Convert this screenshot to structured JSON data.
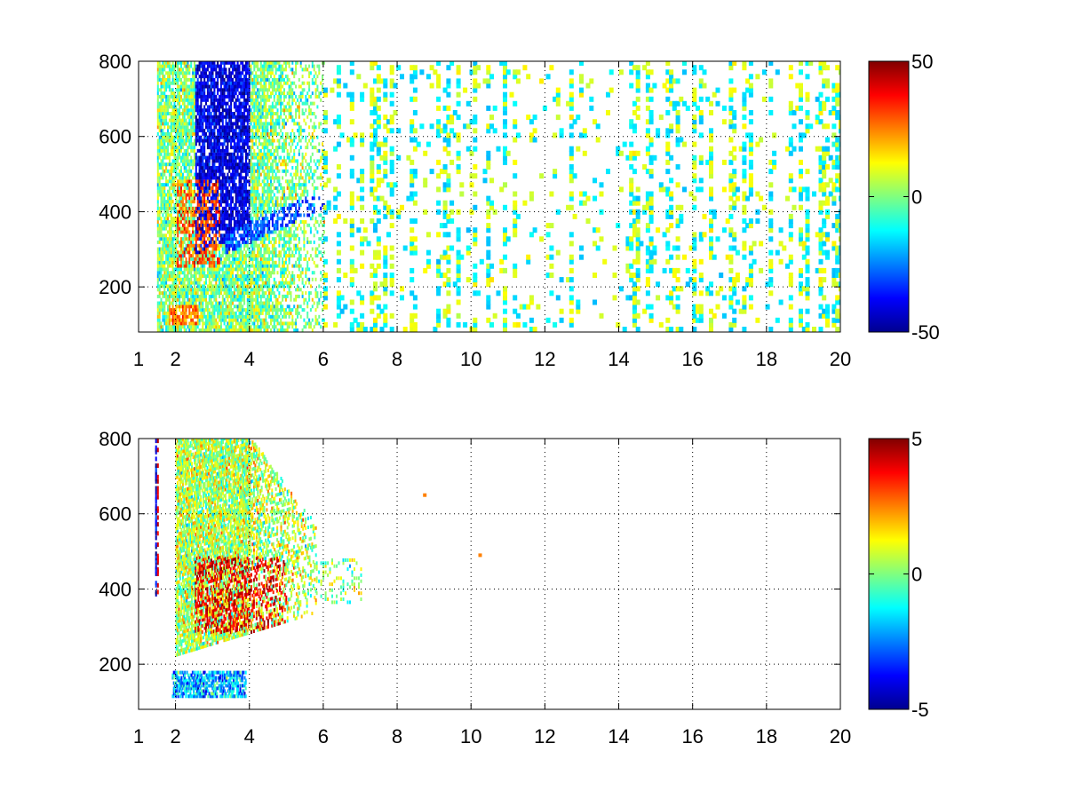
{
  "chart_data": [
    {
      "type": "heatmap",
      "title": "",
      "xlabel": "",
      "ylabel": "",
      "xlim": [
        1,
        20
      ],
      "ylim": [
        80,
        800
      ],
      "x_ticks": [
        1,
        2,
        4,
        6,
        8,
        10,
        12,
        14,
        16,
        18,
        20
      ],
      "y_ticks": [
        200,
        400,
        600,
        800
      ],
      "grid": true,
      "colormap": "jet",
      "colorbar": {
        "range": [
          -50,
          50
        ],
        "ticks": [
          -50,
          0,
          50
        ],
        "placement": "right"
      },
      "features": [
        {
          "kind": "dense-mixed",
          "x": [
            1.5,
            6.0
          ],
          "y": [
            80,
            800
          ],
          "mean": 0,
          "spread": 28
        },
        {
          "kind": "negative-band",
          "x": [
            2.5,
            4.0
          ],
          "y": [
            280,
            800
          ],
          "value": -40
        },
        {
          "kind": "positive-ridge",
          "x": [
            2.0,
            3.2
          ],
          "y": [
            250,
            480
          ],
          "value": 30
        },
        {
          "kind": "positive-base",
          "x": [
            1.8,
            2.6
          ],
          "y": [
            90,
            150
          ],
          "value": 25
        },
        {
          "kind": "sparse-columns",
          "x": [
            6.0,
            20.0
          ],
          "y": [
            80,
            800
          ],
          "values": [
            -15,
            10
          ]
        }
      ]
    },
    {
      "type": "heatmap",
      "title": "",
      "xlabel": "",
      "ylabel": "",
      "xlim": [
        1,
        20
      ],
      "ylim": [
        80,
        800
      ],
      "x_ticks": [
        1,
        2,
        4,
        6,
        8,
        10,
        12,
        14,
        16,
        18,
        20
      ],
      "y_ticks": [
        200,
        400,
        600,
        800
      ],
      "grid": true,
      "colormap": "jet",
      "colorbar": {
        "range": [
          -5,
          5
        ],
        "ticks": [
          -5,
          0,
          5
        ],
        "placement": "right"
      },
      "features": [
        {
          "kind": "wedge-mixed",
          "x": [
            2.0,
            5.8
          ],
          "y": [
            220,
            800
          ],
          "mean": 0.5,
          "spread": 3
        },
        {
          "kind": "positive-core",
          "x": [
            2.5,
            5.0
          ],
          "y": [
            280,
            480
          ],
          "value": 4
        },
        {
          "kind": "base-strip",
          "x": [
            1.9,
            3.9
          ],
          "y": [
            110,
            180
          ],
          "mean": -2,
          "spread": 1.5
        },
        {
          "kind": "isolated",
          "points": [
            [
              8.7,
              645,
              2.5
            ],
            [
              10.2,
              485,
              2.5
            ]
          ]
        }
      ]
    }
  ]
}
